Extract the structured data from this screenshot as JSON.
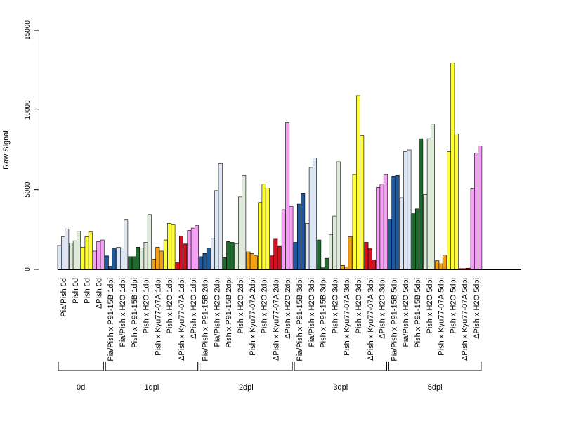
{
  "chart_data": {
    "type": "bar",
    "ylabel": "Raw Signal",
    "ylim": [
      0,
      15000
    ],
    "y_ticks": [
      "0",
      "5000",
      "10000",
      "15000"
    ],
    "replicates_per_bar_group": 3,
    "categories": [
      "Pia/Pish 0d",
      "Pish 0d",
      "Pish 0d",
      "ΔPish 0d",
      "Pia/Pish x P91-15B 1dpi",
      "Pia/Pish x H2O 1dpi",
      "Pish x P91-15B 1dpi",
      "Pish x H2O 1dpi",
      "Pish x Kyu77-07A 1dpi",
      "Pish x H2O 1dpi",
      "ΔPish x Kyu77-07A 1dpi",
      "ΔPish x H2O 1dpi",
      "Pia/Pish x P91-15B 2dpi",
      "Pia/Pish x H2O 2dpi",
      "Pish x P91-15B 2dpi",
      "Pish x H2O 2dpi",
      "Pish x Kyu77-07A 2dpi",
      "Pish x H2O 2dpi",
      "ΔPish x Kyu77-07A 2dpi",
      "ΔPish x H2O 2dpi",
      "Pia/Pish x P91-15B 3dpi",
      "Pia/Pish x H2O 3dpi",
      "Pish x P91-15B 3dpi",
      "Pish x H2O 3dpi",
      "Pish x Kyu77-07A 3dpi",
      "Pish x H2O 3dpi",
      "ΔPish x Kyu77-07A 3dpi",
      "ΔPish x H2O 3dpi",
      "Pia/Pish x P91-15B 5dpi",
      "Pia/Pish x H2O 5dpi",
      "Pish x P91-15B 5dpi",
      "Pish x H2O 5dpi",
      "Pish x Kyu77-07A 5dpi",
      "Pish x H2O 5dpi",
      "ΔPish x Kyu77-07A 5dpi",
      "ΔPish x H2O 5dpi"
    ],
    "values": [
      [
        1500,
        2050,
        2550
      ],
      [
        1650,
        1800,
        2400
      ],
      [
        1400,
        2050,
        2350
      ],
      [
        1150,
        1750,
        1850
      ],
      [
        850,
        200,
        1300
      ],
      [
        1400,
        1350,
        3100
      ],
      [
        800,
        800,
        1400
      ],
      [
        1350,
        1700,
        3450
      ],
      [
        650,
        1400,
        1150
      ],
      [
        1850,
        2900,
        2800
      ],
      [
        450,
        2100,
        1600
      ],
      [
        2450,
        2600,
        2750
      ],
      [
        800,
        1000,
        1350
      ],
      [
        1950,
        4950,
        6650
      ],
      [
        750,
        1750,
        1700
      ],
      [
        1600,
        4550,
        5900
      ],
      [
        1100,
        1000,
        850
      ],
      [
        4200,
        5350,
        5100
      ],
      [
        850,
        1900,
        1450
      ],
      [
        3750,
        9200,
        3950
      ],
      [
        1700,
        4100,
        4750
      ],
      [
        2900,
        6400,
        7000
      ],
      [
        1850,
        100,
        700
      ],
      [
        2200,
        3350,
        6750
      ],
      [
        250,
        150,
        2050
      ],
      [
        5950,
        10900,
        8400
      ],
      [
        1700,
        1300,
        600
      ],
      [
        5150,
        5350,
        5950
      ],
      [
        3150,
        5850,
        5900
      ],
      [
        4500,
        7400,
        7500
      ],
      [
        3500,
        3800,
        8200
      ],
      [
        4700,
        8200,
        9100
      ],
      [
        550,
        350,
        900
      ],
      [
        7400,
        12950,
        8500
      ],
      [
        50,
        50,
        80
      ],
      [
        5050,
        7300,
        7750
      ]
    ],
    "bar_group_colors": [
      "#dce6f4",
      "#ddebd8",
      "#ffff33",
      "#f5a0f5",
      "#1f5aa0",
      "#dce6f4",
      "#1e6b2e",
      "#ddebd8",
      "#f5a00f",
      "#ffff33",
      "#d60e1e",
      "#f5a0f5",
      "#1f5aa0",
      "#dce6f4",
      "#1e6b2e",
      "#ddebd8",
      "#f5a00f",
      "#ffff33",
      "#d60e1e",
      "#f5a0f5",
      "#1f5aa0",
      "#dce6f4",
      "#1e6b2e",
      "#ddebd8",
      "#f5a00f",
      "#ffff33",
      "#d60e1e",
      "#f5a0f5",
      "#1f5aa0",
      "#dce6f4",
      "#1e6b2e",
      "#ddebd8",
      "#f5a00f",
      "#ffff33",
      "#d60e1e",
      "#f5a0f5"
    ],
    "time_groups": [
      {
        "label": "0d",
        "count": 4
      },
      {
        "label": "1dpi",
        "count": 8
      },
      {
        "label": "2dpi",
        "count": 8
      },
      {
        "label": "3dpi",
        "count": 8
      },
      {
        "label": "5dpi",
        "count": 8
      }
    ],
    "grid": false,
    "legend": "none"
  }
}
